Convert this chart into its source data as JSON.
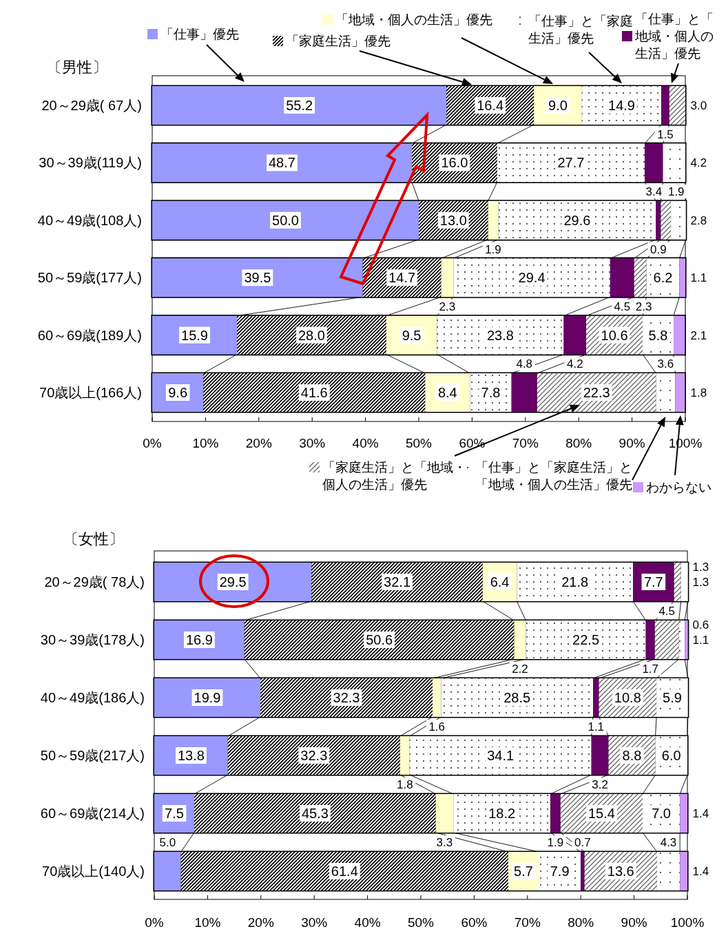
{
  "chart_data": [
    {
      "type": "bar",
      "orientation": "horizontal",
      "stacked": true,
      "data_labels": true,
      "legend": "bottom right",
      "title": "〔男性〕",
      "categories": [
        "20～29歳( 67人)",
        "30～39歳(119人)",
        "40～49歳(108人)",
        "50～59歳(177人)",
        "60～69歳(189人)",
        "70歳以上(166人)"
      ],
      "xlim": [
        0,
        100
      ],
      "xticks": [
        {
          "value": 0,
          "label": "0%"
        },
        {
          "value": 10,
          "label": "10%"
        },
        {
          "value": 20,
          "label": "20%"
        },
        {
          "value": 30,
          "label": "30%"
        },
        {
          "value": 40,
          "label": "40%"
        },
        {
          "value": 50,
          "label": "50%"
        },
        {
          "value": 60,
          "label": "60%"
        },
        {
          "value": 70,
          "label": "70%"
        },
        {
          "value": 80,
          "label": "80%"
        },
        {
          "value": 90,
          "label": "90%"
        },
        {
          "value": 100,
          "label": "100%"
        }
      ],
      "series": [
        {
          "name": "「仕事」優先",
          "color": "#9999ff",
          "values": [
            55.2,
            48.7,
            50.0,
            39.5,
            15.9,
            9.6
          ],
          "value_labels": [
            "55.2",
            "48.7",
            "50.0",
            "39.5",
            "15.9",
            "9.6"
          ]
        },
        {
          "name": "「家庭生活」優先",
          "color": "#000000",
          "values": [
            16.4,
            16.0,
            13.0,
            14.7,
            28.0,
            41.6
          ],
          "value_labels": [
            "16.4",
            "16.0",
            "13.0",
            "14.7",
            "28.0",
            "41.6"
          ]
        },
        {
          "name": "「地域・個人の生活」優先",
          "color": "#ffffcc",
          "values": [
            9.0,
            null,
            1.9,
            2.3,
            9.5,
            8.4
          ],
          "value_labels": [
            "9.0",
            null,
            "1.9",
            "2.3",
            "9.5",
            "8.4"
          ]
        },
        {
          "name": "「仕事」と「家庭生活」優先",
          "color": "#ffffff",
          "values": [
            14.9,
            27.7,
            29.6,
            29.4,
            23.8,
            7.8
          ],
          "value_labels": [
            "14.9",
            "27.7",
            "29.6",
            "29.4",
            "23.8",
            "7.8"
          ]
        },
        {
          "name": "「仕事」と「地域・個人の生活」優先",
          "color": "#660066",
          "values": [
            1.5,
            3.4,
            0.9,
            4.5,
            4.2,
            4.8
          ],
          "value_labels": [
            "1.5",
            "3.4",
            "0.9",
            "4.5",
            "4.2",
            "4.8"
          ]
        },
        {
          "name": "「家庭生活」と「地域・個人の生活」優先",
          "color": "#666666",
          "values": [
            3.0,
            null,
            1.9,
            2.3,
            10.6,
            22.3
          ],
          "value_labels": [
            "3.0",
            null,
            "1.9",
            "2.3",
            "10.6",
            "22.3"
          ]
        },
        {
          "name": "「仕事」と「家庭生活」と「地域・個人の生活」優先",
          "color": "#ffffff",
          "values": [
            null,
            4.2,
            2.8,
            6.2,
            5.8,
            3.6
          ],
          "value_labels": [
            null,
            "4.2",
            "2.8",
            "6.2",
            "5.8",
            "3.6"
          ]
        },
        {
          "name": "わからない",
          "color": "#cc99ff",
          "values": [
            null,
            null,
            null,
            1.1,
            2.1,
            1.8
          ],
          "value_labels": [
            null,
            null,
            null,
            "1.1",
            "2.1",
            "1.8"
          ]
        }
      ]
    },
    {
      "type": "bar",
      "orientation": "horizontal",
      "stacked": true,
      "data_labels": true,
      "title": "〔女性〕",
      "categories": [
        "20～29歳( 78人)",
        "30～39歳(178人)",
        "40～49歳(186人)",
        "50～59歳(217人)",
        "60～69歳(214人)",
        "70歳以上(140人)"
      ],
      "xlim": [
        0,
        100
      ],
      "xticks": [
        {
          "value": 0,
          "label": "0%"
        },
        {
          "value": 10,
          "label": "10%"
        },
        {
          "value": 20,
          "label": "20%"
        },
        {
          "value": 30,
          "label": "30%"
        },
        {
          "value": 40,
          "label": "40%"
        },
        {
          "value": 50,
          "label": "50%"
        },
        {
          "value": 60,
          "label": "60%"
        },
        {
          "value": 70,
          "label": "70%"
        },
        {
          "value": 80,
          "label": "80%"
        },
        {
          "value": 90,
          "label": "90%"
        },
        {
          "value": 100,
          "label": "100%"
        }
      ],
      "series": [
        {
          "color": "#9999ff",
          "values": [
            29.5,
            16.9,
            19.9,
            13.8,
            7.5,
            5.0
          ],
          "value_labels": [
            "29.5",
            "16.9",
            "19.9",
            "13.8",
            "7.5",
            "5.0"
          ]
        },
        {
          "color": "#000000",
          "values": [
            32.1,
            50.6,
            32.3,
            32.3,
            45.3,
            61.4
          ],
          "value_labels": [
            "32.1",
            "50.6",
            "32.3",
            "32.3",
            "45.3",
            "61.4"
          ]
        },
        {
          "color": "#ffffcc",
          "values": [
            6.4,
            2.2,
            1.6,
            1.8,
            3.3,
            5.7
          ],
          "value_labels": [
            "6.4",
            "2.2",
            "1.6",
            "1.8",
            "3.3",
            "5.7"
          ]
        },
        {
          "color": "#ffffff",
          "values": [
            21.8,
            22.5,
            28.5,
            34.1,
            18.2,
            7.9
          ],
          "value_labels": [
            "21.8",
            "22.5",
            "28.5",
            "34.1",
            "18.2",
            "7.9"
          ]
        },
        {
          "color": "#660066",
          "values": [
            7.7,
            1.7,
            1.1,
            3.2,
            1.9,
            0.7
          ],
          "value_labels": [
            "7.7",
            "1.7",
            "1.1",
            "3.2",
            "1.9",
            "0.7"
          ]
        },
        {
          "color": "#666666",
          "values": [
            1.3,
            4.5,
            10.8,
            8.8,
            15.4,
            13.6
          ],
          "value_labels": [
            "1.3",
            "4.5",
            "10.8",
            "8.8",
            "15.4",
            "13.6"
          ]
        },
        {
          "color": "#ffffff",
          "values": [
            1.3,
            1.1,
            5.9,
            6.0,
            7.0,
            4.3
          ],
          "value_labels": [
            "1.3",
            "1.1",
            "5.9",
            "6.0",
            "7.0",
            "4.3"
          ]
        },
        {
          "color": "#cc99ff",
          "values": [
            null,
            0.6,
            null,
            null,
            1.4,
            1.4
          ],
          "value_labels": [
            null,
            "0.6",
            null,
            null,
            "1.4",
            "1.4"
          ]
        }
      ]
    }
  ]
}
